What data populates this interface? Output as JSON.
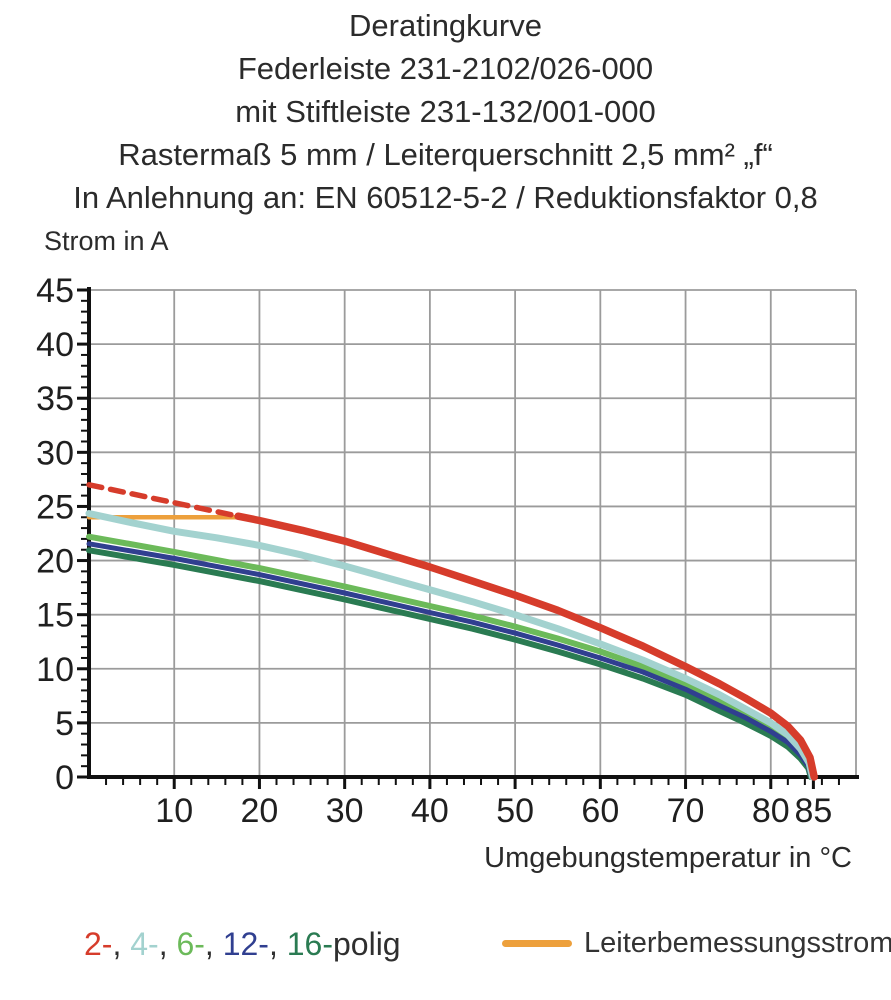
{
  "title_lines": [
    "Deratingkurve",
    "Federleiste 231-2102/026-000",
    "mit Stiftleiste 231-132/001-000",
    "Rastermaß 5 mm / Leiterquerschnitt 2,5 mm² „f“",
    "In Anlehnung an: EN 60512-5-2 / Reduktionsfaktor 0,8"
  ],
  "legend": {
    "poles": [
      {
        "label": "2-",
        "color": "#d63c2b"
      },
      {
        "label": "4-",
        "color": "#a3d2cf"
      },
      {
        "label": "6-",
        "color": "#6cba5a"
      },
      {
        "label": "12-",
        "color": "#303f90"
      },
      {
        "label": "16-",
        "color": "#2a7b52"
      }
    ],
    "poles_separator": ", ",
    "poles_suffix": "polig",
    "poles_text_color": "#2f2f2f",
    "rated_current_label": "Leiterbemessungsstrom",
    "rated_current_color": "#eda03c"
  },
  "chart_data": {
    "type": "line",
    "title": "Deratingkurve",
    "xlabel": "Umgebungstemperatur in °C",
    "ylabel": "Strom in A",
    "xlim": [
      0,
      90
    ],
    "ylim": [
      0,
      45
    ],
    "x_ticks": [
      10,
      20,
      30,
      40,
      50,
      60,
      70,
      80,
      85
    ],
    "y_ticks": [
      0,
      5,
      10,
      15,
      20,
      25,
      30,
      35,
      40,
      45
    ],
    "x_grid_step": 10,
    "y_grid_step": 5,
    "x_minor_step": 2,
    "y_minor_step": 1,
    "grid": true,
    "grid_color": "#9b9b9b",
    "axis_color": "#111111",
    "tick_label_color": "#1f1f1f",
    "legend_position": "bottom",
    "series": [
      {
        "name": "Leiterbemessungsstrom",
        "color": "#eda03c",
        "width": 4.5,
        "points": [
          [
            0,
            24
          ],
          [
            18,
            24
          ]
        ]
      },
      {
        "name": "2-polig (extrapoliert, gestrichelt)",
        "color": "#d63c2b",
        "width": 5.5,
        "dash": "13 9",
        "points": [
          [
            0,
            27
          ],
          [
            17.5,
            24.1
          ]
        ]
      },
      {
        "name": "6-polig",
        "color": "#6cba5a",
        "width": 6,
        "points": [
          [
            0,
            22.2
          ],
          [
            10,
            20.8
          ],
          [
            20,
            19.3
          ],
          [
            30,
            17.6
          ],
          [
            40,
            15.8
          ],
          [
            45,
            14.9
          ],
          [
            50,
            13.9
          ],
          [
            55,
            12.8
          ],
          [
            60,
            11.6
          ],
          [
            65,
            10.2
          ],
          [
            70,
            8.6
          ],
          [
            74,
            7.1
          ],
          [
            77,
            5.9
          ],
          [
            80,
            4.6
          ],
          [
            82,
            3.5
          ],
          [
            83.5,
            2.3
          ],
          [
            84.4,
            1.2
          ],
          [
            84.8,
            0
          ]
        ]
      },
      {
        "name": "16-polig",
        "color": "#2a7b52",
        "width": 6,
        "points": [
          [
            0,
            20.95
          ],
          [
            10,
            19.6
          ],
          [
            20,
            18.1
          ],
          [
            30,
            16.4
          ],
          [
            40,
            14.6
          ],
          [
            45,
            13.7
          ],
          [
            50,
            12.7
          ],
          [
            55,
            11.6
          ],
          [
            60,
            10.4
          ],
          [
            65,
            9.1
          ],
          [
            70,
            7.6
          ],
          [
            74,
            6.1
          ],
          [
            77,
            5.0
          ],
          [
            80,
            3.8
          ],
          [
            82,
            2.8
          ],
          [
            83.5,
            1.7
          ],
          [
            84.4,
            0.8
          ],
          [
            84.7,
            0
          ]
        ]
      },
      {
        "name": "12-polig",
        "color": "#303f90",
        "width": 5,
        "points": [
          [
            0,
            21.55
          ],
          [
            10,
            20.2
          ],
          [
            20,
            18.7
          ],
          [
            30,
            17.0
          ],
          [
            40,
            15.2
          ],
          [
            45,
            14.3
          ],
          [
            50,
            13.3
          ],
          [
            55,
            12.2
          ],
          [
            60,
            11.0
          ],
          [
            65,
            9.7
          ],
          [
            70,
            8.1
          ],
          [
            74,
            6.6
          ],
          [
            77,
            5.5
          ],
          [
            80,
            4.2
          ],
          [
            82,
            3.2
          ],
          [
            83.5,
            2.0
          ],
          [
            84.4,
            1.0
          ],
          [
            84.75,
            0
          ]
        ]
      },
      {
        "name": "4-polig",
        "color": "#a3d2cf",
        "width": 7,
        "points": [
          [
            0,
            24.35
          ],
          [
            5,
            23.5
          ],
          [
            10,
            22.7
          ],
          [
            15,
            22.1
          ],
          [
            20,
            21.4
          ],
          [
            25,
            20.5
          ],
          [
            30,
            19.5
          ],
          [
            35,
            18.4
          ],
          [
            40,
            17.3
          ],
          [
            45,
            16.2
          ],
          [
            50,
            15.0
          ],
          [
            55,
            13.7
          ],
          [
            60,
            12.3
          ],
          [
            65,
            10.8
          ],
          [
            70,
            9.1
          ],
          [
            74,
            7.6
          ],
          [
            77,
            6.3
          ],
          [
            80,
            5.0
          ],
          [
            82,
            3.9
          ],
          [
            83.5,
            2.6
          ],
          [
            84.5,
            1.3
          ],
          [
            84.9,
            0
          ]
        ]
      },
      {
        "name": "2-polig",
        "color": "#d63c2b",
        "width": 7.5,
        "points": [
          [
            17.5,
            24.1
          ],
          [
            20,
            23.7
          ],
          [
            25,
            22.8
          ],
          [
            30,
            21.8
          ],
          [
            35,
            20.6
          ],
          [
            40,
            19.4
          ],
          [
            45,
            18.1
          ],
          [
            50,
            16.8
          ],
          [
            55,
            15.4
          ],
          [
            60,
            13.8
          ],
          [
            65,
            12.1
          ],
          [
            70,
            10.2
          ],
          [
            74,
            8.6
          ],
          [
            77,
            7.3
          ],
          [
            80,
            5.9
          ],
          [
            82,
            4.7
          ],
          [
            83.5,
            3.4
          ],
          [
            84.6,
            1.8
          ],
          [
            85.1,
            0
          ]
        ]
      }
    ]
  }
}
